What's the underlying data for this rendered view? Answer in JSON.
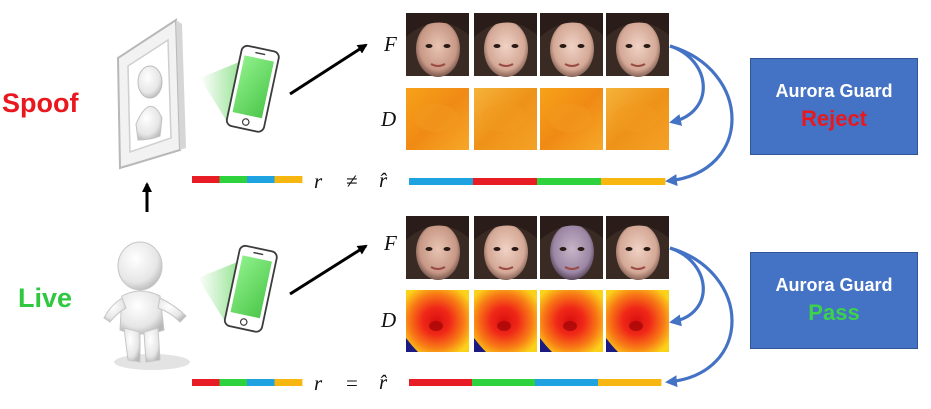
{
  "rows": [
    {
      "key": "spoof",
      "label": "Spoof",
      "label_color": "#e8181e",
      "f_symbol": "F",
      "d_symbol": "D",
      "r_symbol": "r",
      "relation": "≠",
      "rhat_symbol": "r̂",
      "guard": {
        "title": "Aurora Guard",
        "result": "Reject",
        "result_color": "#e8181e"
      },
      "r_colors": [
        "#e81c24",
        "#2ed23c",
        "#1ea2e0",
        "#f8b610"
      ],
      "rhat_colors": [
        "#1ea2e0",
        "#e81c24",
        "#2ed23c",
        "#f8b610"
      ]
    },
    {
      "key": "live",
      "label": "Live",
      "label_color": "#2fc840",
      "f_symbol": "F",
      "d_symbol": "D",
      "r_symbol": "r",
      "relation": "=",
      "rhat_symbol": "r̂",
      "guard": {
        "title": "Aurora Guard",
        "result": "Pass",
        "result_color": "#3cd24c"
      },
      "r_colors": [
        "#e81c24",
        "#2ed23c",
        "#1ea2e0",
        "#f8b610"
      ],
      "rhat_colors": [
        "#e81c24",
        "#2ed23c",
        "#1ea2e0",
        "#f8b610"
      ]
    }
  ],
  "icons": {
    "spoof_source": "framed-figure-icon",
    "live_source": "3d-person-icon",
    "phone": "phone-with-green-screen-icon",
    "face": "face-photo-icon",
    "depth_flat": "flat-depth-map-icon",
    "depth_face": "face-depth-map-icon"
  },
  "colors": {
    "arrow_blue": "#4472c4",
    "guard_fill": "#4472c4",
    "phone_screen": "#6fe06a"
  }
}
